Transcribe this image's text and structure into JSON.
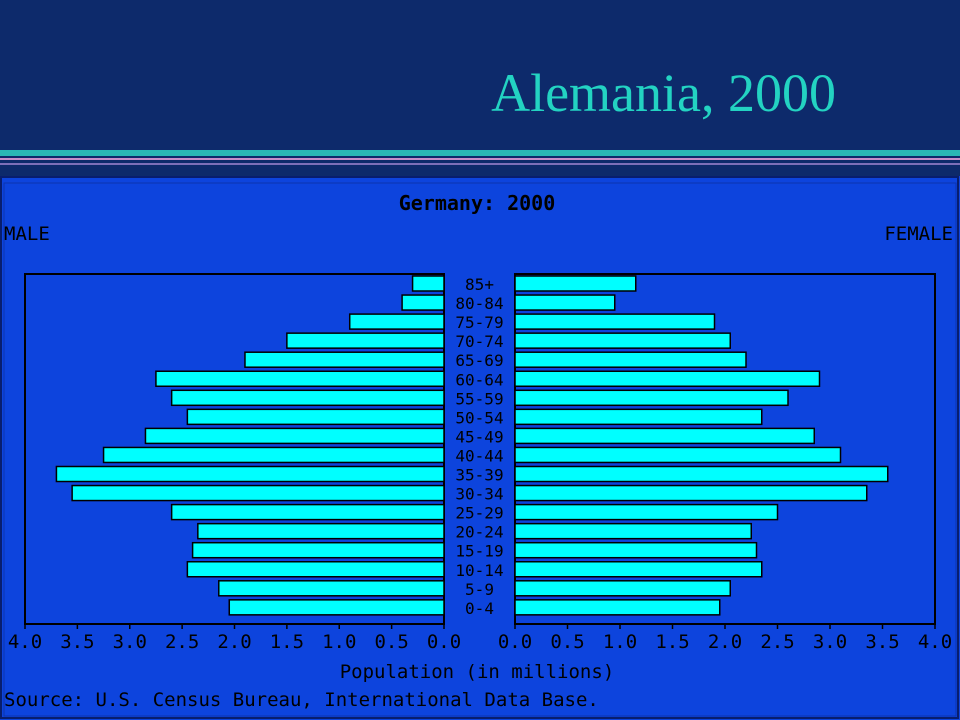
{
  "slide": {
    "title": "Alemania, 2000"
  },
  "colors": {
    "slide_bg": "#0d2a6b",
    "title": "#23d3c2",
    "rule_teal": "#2ab7b5",
    "rule_pink": "#c58fc9",
    "rule_purple": "#7d6fb9",
    "panel_bg": "#0d44dd",
    "bar_fill": "#00ffff",
    "text": "#000000"
  },
  "chart_data": {
    "type": "bar",
    "title": "Germany: 2000",
    "left_label": "MALE",
    "right_label": "FEMALE",
    "xlabel": "Population (in millions)",
    "source": "Source: U.S. Census Bureau, International Data Base.",
    "categories": [
      "85+",
      "80-84",
      "75-79",
      "70-74",
      "65-69",
      "60-64",
      "55-59",
      "50-54",
      "45-49",
      "40-44",
      "35-39",
      "30-34",
      "25-29",
      "20-24",
      "15-19",
      "10-14",
      "5-9",
      "0-4"
    ],
    "series": [
      {
        "name": "MALE",
        "values": [
          0.3,
          0.4,
          0.9,
          1.5,
          1.9,
          2.75,
          2.6,
          2.45,
          2.85,
          3.25,
          3.7,
          3.55,
          2.6,
          2.35,
          2.4,
          2.45,
          2.15,
          2.05
        ]
      },
      {
        "name": "FEMALE",
        "values": [
          1.15,
          0.95,
          1.9,
          2.05,
          2.2,
          2.9,
          2.6,
          2.35,
          2.85,
          3.1,
          3.55,
          3.35,
          2.5,
          2.25,
          2.3,
          2.35,
          2.05,
          1.95
        ]
      }
    ],
    "xlim": [
      0,
      4.0
    ],
    "tick_labels": [
      "0.0",
      "0.5",
      "1.0",
      "1.5",
      "2.0",
      "2.5",
      "3.0",
      "3.5",
      "4.0"
    ],
    "grid": false
  }
}
